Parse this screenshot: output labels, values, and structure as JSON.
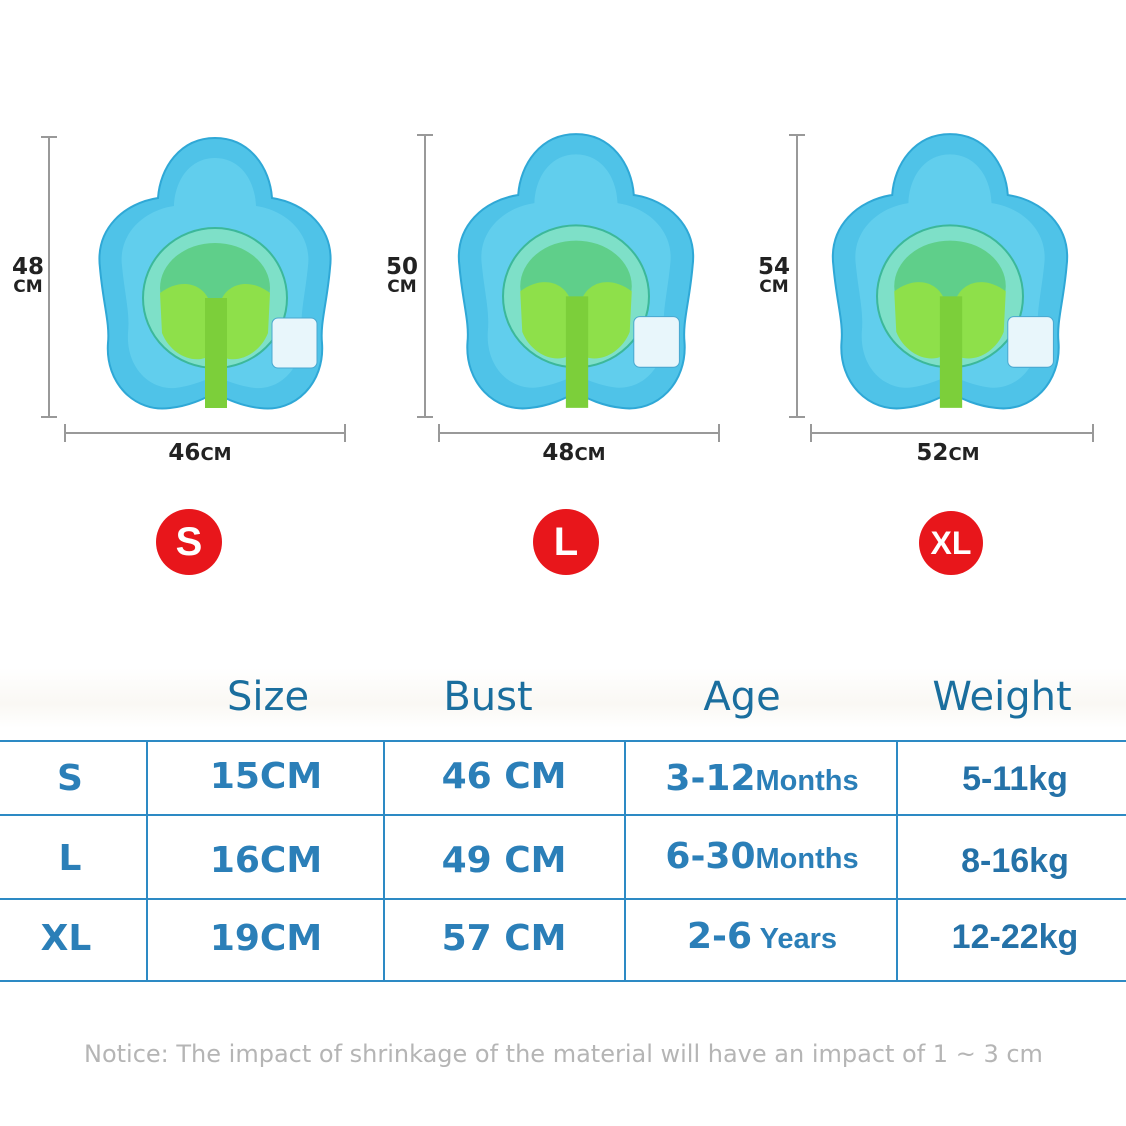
{
  "products": [
    {
      "size": "S",
      "height_num": "48",
      "height_unit": "CM",
      "width_num": "46",
      "width_unit": "CM"
    },
    {
      "size": "L",
      "height_num": "50",
      "height_unit": "CM",
      "width_num": "48",
      "width_unit": "CM"
    },
    {
      "size": "XL",
      "height_num": "54",
      "height_unit": "CM",
      "width_num": "52",
      "width_unit": "CM"
    }
  ],
  "table": {
    "headers": [
      "Size",
      "Bust",
      "Age",
      "Weight"
    ],
    "rows": [
      {
        "label": "S",
        "size": "15CM",
        "bust": "46 CM",
        "age_num": "3-12",
        "age_unit": "Months",
        "weight": "5-11kg"
      },
      {
        "label": "L",
        "size": "16CM",
        "bust": "49 CM",
        "age_num": "6-30",
        "age_unit": "Months",
        "weight": "8-16kg"
      },
      {
        "label": "XL",
        "size": "19CM",
        "bust": "57 CM",
        "age_num": "2-6",
        "age_unit": " Years",
        "weight": "12-22kg"
      }
    ]
  },
  "notice": "Notice: The impact of shrinkage of the material will have an impact of 1 ~ 3 cm",
  "colors": {
    "badge": "#e8161b",
    "table_text": "#2b7fb8",
    "grid_line": "#2d8ac4",
    "float_body": "#4fc3e8",
    "seat": "#8ee04a"
  }
}
